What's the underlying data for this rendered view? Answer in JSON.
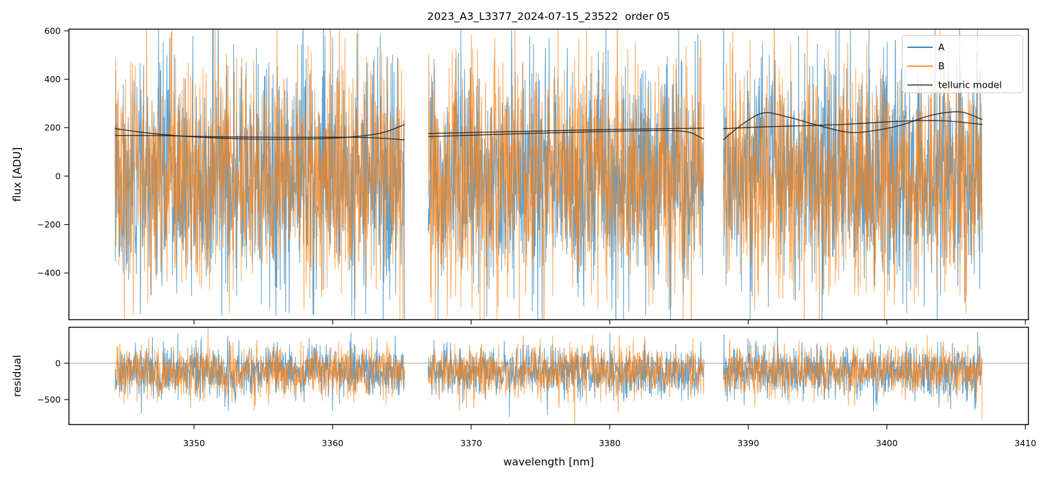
{
  "chart_data": {
    "type": "line",
    "title": "2023_A3_L3377_2024-07-15_23522  order 05",
    "xlabel": "wavelength [nm]",
    "xlim": [
      3340.97,
      3410.22
    ],
    "xticks": [
      {
        "v": 3350,
        "label": "3350"
      },
      {
        "v": 3360,
        "label": "3360"
      },
      {
        "v": 3370,
        "label": "3370"
      },
      {
        "v": 3380,
        "label": "3380"
      },
      {
        "v": 3390,
        "label": "3390"
      },
      {
        "v": 3400,
        "label": "3400"
      },
      {
        "v": 3410,
        "label": "3410"
      }
    ],
    "segments": [
      [
        3344.3,
        3365.2
      ],
      [
        3366.9,
        3386.8
      ],
      [
        3388.2,
        3406.9
      ]
    ],
    "grid": false,
    "legend": {
      "position": "upper right",
      "entries": [
        {
          "label": "A",
          "color": "#1f77b4"
        },
        {
          "label": "B",
          "color": "#ff7f0e"
        },
        {
          "label": "telluric model",
          "color": "#4d4d4d"
        }
      ]
    },
    "panels": [
      {
        "name": "flux",
        "ylabel": "flux [ADU]",
        "ylim": [
          -593,
          607
        ],
        "yticks": [
          {
            "v": 600,
            "label": "600"
          },
          {
            "v": 400,
            "label": "400"
          },
          {
            "v": 200,
            "label": "200"
          },
          {
            "v": 0,
            "label": "0"
          },
          {
            "v": -200,
            "label": "−200"
          },
          {
            "v": -400,
            "label": "−400"
          }
        ],
        "zeroline": false,
        "series": [
          {
            "name": "A",
            "color": "#1f77b4",
            "kind": "noise",
            "mean": 0,
            "sigma": 235,
            "spike_prob": 0.003,
            "spike_scale": 1.5,
            "opacity": 0.7
          },
          {
            "name": "B",
            "color": "#ff7f0e",
            "kind": "noise",
            "mean": 0,
            "sigma": 235,
            "spike_prob": 0.003,
            "spike_scale": 1.5,
            "opacity": 0.7
          }
        ],
        "model_curves": [
          {
            "name": "telluric model (beam A)",
            "color": "#1c1c1c",
            "segments": [
              [
                [
                  3344.3,
                  196
                ],
                [
                  3347,
                  176
                ],
                [
                  3350,
                  162
                ],
                [
                  3354,
                  153
                ],
                [
                  3358,
                  153
                ],
                [
                  3361,
                  160
                ],
                [
                  3363.5,
                  178
                ],
                [
                  3365.2,
                  213
                ]
              ],
              [
                [
                  3366.9,
                  176
                ],
                [
                  3370,
                  180
                ],
                [
                  3374,
                  185
                ],
                [
                  3378,
                  190
                ],
                [
                  3382,
                  194
                ],
                [
                  3385,
                  197
                ],
                [
                  3386.8,
                  198
                ]
              ],
              [
                [
                  3388.2,
                  150
                ],
                [
                  3389.6,
                  215
                ],
                [
                  3391.1,
                  261
                ],
                [
                  3392.8,
                  245
                ],
                [
                  3395,
                  210
                ],
                [
                  3397.2,
                  181
                ],
                [
                  3399,
                  187
                ],
                [
                  3401,
                  210
                ],
                [
                  3403,
                  248
                ],
                [
                  3404.5,
                  264
                ],
                [
                  3405.6,
                  262
                ],
                [
                  3406.9,
                  233
                ]
              ]
            ]
          },
          {
            "name": "telluric model (beam B)",
            "color": "#1c1c1c",
            "segments": [
              [
                [
                  3344.3,
                  168
                ],
                [
                  3348,
                  167
                ],
                [
                  3352,
                  162
                ],
                [
                  3356,
                  160
                ],
                [
                  3360,
                  161
                ],
                [
                  3363,
                  158
                ],
                [
                  3365.2,
                  150
                ]
              ],
              [
                [
                  3366.9,
                  163
                ],
                [
                  3370,
                  169
                ],
                [
                  3374,
                  176
                ],
                [
                  3378,
                  182
                ],
                [
                  3382,
                  187
                ],
                [
                  3384.5,
                  188
                ],
                [
                  3385.8,
                  180
                ],
                [
                  3386.8,
                  152
                ]
              ],
              [
                [
                  3388.2,
                  196
                ],
                [
                  3391,
                  203
                ],
                [
                  3394,
                  208
                ],
                [
                  3397,
                  214
                ],
                [
                  3400,
                  224
                ],
                [
                  3402,
                  229
                ],
                [
                  3404,
                  229
                ],
                [
                  3405.5,
                  222
                ],
                [
                  3406.9,
                  213
                ]
              ]
            ]
          }
        ]
      },
      {
        "name": "residual",
        "ylabel": "residual",
        "ylim": [
          -844,
          495
        ],
        "yticks": [
          {
            "v": 0,
            "label": "0"
          },
          {
            "v": -500,
            "label": "−500"
          }
        ],
        "zeroline": true,
        "zeroline_color": "#808080",
        "series": [
          {
            "name": "A",
            "color": "#1f77b4",
            "kind": "noise",
            "mean": -115,
            "sigma": 175,
            "spike_prob": 0.005,
            "spike_scale": 2.0,
            "opacity": 0.7
          },
          {
            "name": "B",
            "color": "#ff7f0e",
            "kind": "noise",
            "mean": -115,
            "sigma": 175,
            "spike_prob": 0.005,
            "spike_scale": 2.0,
            "opacity": 0.7
          }
        ]
      }
    ]
  }
}
